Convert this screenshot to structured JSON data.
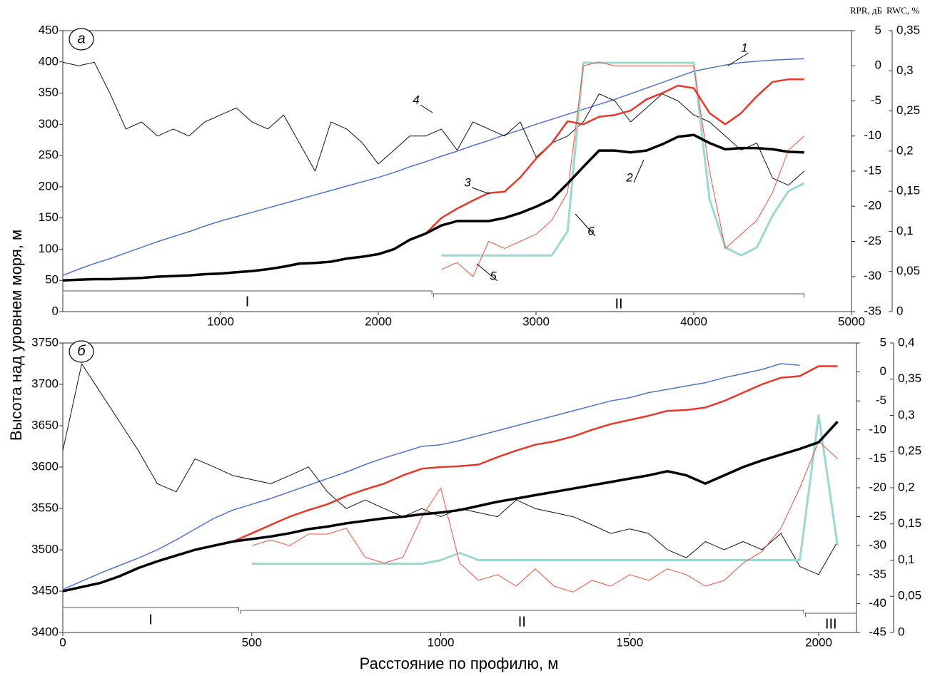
{
  "chart_data": [
    {
      "type": "line",
      "panel_label": "а",
      "y_label": "Высота над уровнем моря, м",
      "y2_label": "RPR, дБ",
      "y3_label": "RWC, %",
      "x": [
        0,
        100,
        200,
        300,
        400,
        500,
        600,
        700,
        800,
        900,
        1000,
        1100,
        1200,
        1300,
        1400,
        1500,
        1600,
        1700,
        1800,
        1900,
        2000,
        2100,
        2200,
        2300,
        2400,
        2500,
        2600,
        2700,
        2800,
        2900,
        3000,
        3100,
        3200,
        3300,
        3400,
        3500,
        3600,
        3700,
        3800,
        3900,
        4000,
        4100,
        4200,
        4300,
        4400,
        4500,
        4600,
        4700
      ],
      "xlim": [
        0,
        5000
      ],
      "xticks": [
        1000,
        2000,
        3000,
        4000,
        5000
      ],
      "ylim": [
        0,
        450
      ],
      "yticks": [
        0,
        50,
        100,
        150,
        200,
        250,
        300,
        350,
        400,
        450
      ],
      "y2lim": [
        -35,
        5
      ],
      "y2ticks": [
        -35,
        -30,
        -25,
        -20,
        -15,
        -10,
        -5,
        0,
        5
      ],
      "y3lim": [
        0,
        0.35
      ],
      "y3ticks": [
        0,
        {
          "value": 0.05,
          "label": "0,05"
        },
        {
          "value": 0.1,
          "label": "0,1"
        },
        {
          "value": 0.15,
          "label": "0,15"
        },
        {
          "value": 0.2,
          "label": "0,2"
        },
        {
          "value": 0.25,
          "label": "0,25"
        },
        {
          "value": 0.3,
          "label": "0,3"
        },
        {
          "value": 0.35,
          "label": "0,35"
        }
      ],
      "zones": [
        {
          "label": "I",
          "start": 0,
          "end": 2340
        },
        {
          "label": "II",
          "start": 2350,
          "end": 4700
        }
      ],
      "series": [
        {
          "name": "1",
          "color": "#4f73cf",
          "width": 1.5,
          "axis": "y",
          "values": [
            58,
            68,
            77,
            85,
            94,
            103,
            112,
            120,
            128,
            137,
            145,
            152,
            159,
            166,
            173,
            180,
            187,
            194,
            201,
            208,
            215,
            223,
            232,
            240,
            249,
            257,
            266,
            274,
            283,
            291,
            300,
            308,
            316,
            324,
            332,
            340,
            349,
            358,
            367,
            376,
            385,
            390,
            395,
            399,
            401,
            403,
            404,
            405
          ]
        },
        {
          "name": "4",
          "color": "#111111",
          "width": 1,
          "axis": "y2",
          "values": [
            0.5,
            0,
            0.5,
            -4,
            -9,
            -8,
            -10,
            -9,
            -10,
            -8,
            -7,
            -6,
            -8,
            -9,
            -7,
            -11,
            -15,
            -8,
            -9,
            -11,
            -14,
            -12,
            -10,
            -10,
            -9,
            -12,
            -8,
            -9,
            -10,
            -8,
            -13,
            -11,
            -10,
            -8,
            -4,
            -5,
            -8,
            -6,
            -4,
            -5,
            -7,
            -8,
            -10,
            -12,
            -11,
            -16,
            -17,
            -15
          ]
        },
        {
          "name": "6",
          "color": "#9ad8d0",
          "width": 3,
          "axis": "y3",
          "values": [
            null,
            null,
            null,
            null,
            null,
            null,
            null,
            null,
            null,
            null,
            null,
            null,
            null,
            null,
            null,
            null,
            null,
            null,
            null,
            null,
            null,
            null,
            null,
            null,
            0.07,
            0.07,
            0.07,
            0.07,
            0.07,
            0.07,
            0.07,
            0.07,
            0.1,
            0.31,
            0.31,
            0.31,
            0.31,
            0.31,
            0.31,
            0.31,
            0.31,
            0.14,
            0.08,
            0.07,
            0.08,
            0.12,
            0.15,
            0.16
          ]
        },
        {
          "name": "5",
          "color": "#f0503c",
          "width": 1,
          "axis": "y2",
          "values": [
            null,
            null,
            null,
            null,
            null,
            null,
            null,
            null,
            null,
            null,
            null,
            null,
            null,
            null,
            null,
            null,
            null,
            null,
            null,
            null,
            null,
            null,
            null,
            null,
            -29,
            -28,
            -30,
            -25,
            -26,
            -25,
            -24,
            -22,
            -18,
            0,
            0.5,
            0,
            0,
            0,
            0,
            0,
            0,
            -15,
            -26,
            -24,
            -22,
            -18,
            -12,
            -10
          ]
        },
        {
          "name": "3",
          "color": "#e8382a",
          "width": 2.5,
          "axis": "y",
          "values": [
            50,
            51,
            52,
            52,
            53,
            54,
            56,
            57,
            58,
            60,
            61,
            63,
            65,
            68,
            72,
            77,
            78,
            80,
            85,
            88,
            92,
            100,
            115,
            125,
            150,
            165,
            178,
            190,
            192,
            215,
            245,
            270,
            305,
            300,
            312,
            315,
            322,
            340,
            350,
            362,
            358,
            318,
            300,
            318,
            345,
            368,
            372,
            372
          ]
        },
        {
          "name": "2",
          "color": "#000000",
          "width": 3.5,
          "axis": "y",
          "values": [
            50,
            51,
            52,
            52,
            53,
            54,
            56,
            57,
            58,
            60,
            61,
            63,
            65,
            68,
            72,
            77,
            78,
            80,
            85,
            88,
            92,
            100,
            115,
            125,
            138,
            145,
            145,
            145,
            150,
            158,
            168,
            180,
            205,
            232,
            258,
            258,
            255,
            258,
            268,
            280,
            283,
            270,
            260,
            262,
            262,
            260,
            256,
            255
          ]
        }
      ]
    },
    {
      "type": "line",
      "panel_label": "б",
      "x_label": "Расстояние по профилю, м",
      "x": [
        0,
        50,
        100,
        150,
        200,
        250,
        300,
        350,
        400,
        450,
        500,
        550,
        600,
        650,
        700,
        750,
        800,
        850,
        900,
        950,
        1000,
        1050,
        1100,
        1150,
        1200,
        1250,
        1300,
        1350,
        1400,
        1450,
        1500,
        1550,
        1600,
        1650,
        1700,
        1750,
        1800,
        1850,
        1900,
        1950,
        2000,
        2050
      ],
      "xlim": [
        0,
        2100
      ],
      "xticks": [
        0,
        500,
        1000,
        1500,
        2000
      ],
      "ylim": [
        3400,
        3750
      ],
      "yticks": [
        3400,
        3450,
        3500,
        3550,
        3600,
        3650,
        3700,
        3750
      ],
      "y2lim": [
        -45,
        5
      ],
      "y2ticks": [
        -45,
        -40,
        -35,
        -30,
        -25,
        -20,
        -15,
        -10,
        -5,
        0,
        5
      ],
      "y3lim": [
        0,
        0.4
      ],
      "y3ticks": [
        0,
        {
          "value": 0.05,
          "label": "0,05"
        },
        {
          "value": 0.1,
          "label": "0,1"
        },
        {
          "value": 0.15,
          "label": "0,15"
        },
        {
          "value": 0.2,
          "label": "0,2"
        },
        {
          "value": 0.25,
          "label": "0,25"
        },
        {
          "value": 0.3,
          "label": "0,3"
        },
        {
          "value": 0.35,
          "label": "0,35"
        },
        {
          "value": 0.4,
          "label": "0,4"
        }
      ],
      "zones": [
        {
          "label": "I",
          "start": 0,
          "end": 465
        },
        {
          "label": "II",
          "start": 470,
          "end": 1960
        },
        {
          "label": "III",
          "start": 1965,
          "end": 2100
        }
      ],
      "series": [
        {
          "color": "#4f73cf",
          "width": 1.5,
          "axis": "y",
          "values": [
            3452,
            3462,
            3472,
            3481,
            3490,
            3500,
            3512,
            3525,
            3538,
            3548,
            3555,
            3562,
            3570,
            3578,
            3586,
            3594,
            3603,
            3611,
            3618,
            3625,
            3627,
            3632,
            3638,
            3644,
            3650,
            3656,
            3662,
            3668,
            3674,
            3680,
            3684,
            3690,
            3694,
            3698,
            3702,
            3708,
            3713,
            3718,
            3725,
            3723,
            null,
            null
          ]
        },
        {
          "color": "#111111",
          "width": 1,
          "axis": "y2",
          "values": [
            -13.6,
            1.4,
            -3.6,
            -8.6,
            -13.6,
            -19.3,
            -20.7,
            -15,
            -16.4,
            -17.9,
            -18.6,
            -19.3,
            -17.9,
            -16.4,
            -20.7,
            -23.6,
            -22.1,
            -23.6,
            -25,
            -23.6,
            -25,
            -23.6,
            -24.3,
            -25,
            -22.1,
            -23.6,
            -24.3,
            -25,
            -26.4,
            -27.9,
            -27.1,
            -27.9,
            -30.7,
            -32.1,
            -29.3,
            -30.7,
            -29.3,
            -30.7,
            -27.9,
            -33.6,
            -35,
            -29.3
          ]
        },
        {
          "color": "#9ad8d0",
          "width": 3,
          "axis": "y3",
          "values": [
            null,
            null,
            null,
            null,
            null,
            null,
            null,
            null,
            null,
            null,
            0.095,
            0.095,
            0.095,
            0.095,
            0.095,
            0.095,
            0.095,
            0.095,
            0.095,
            0.095,
            0.1,
            0.11,
            0.1,
            0.1,
            0.1,
            0.1,
            0.1,
            0.1,
            0.1,
            0.1,
            0.1,
            0.1,
            0.1,
            0.1,
            0.1,
            0.1,
            0.1,
            0.1,
            0.1,
            0.1,
            0.3,
            0.12
          ]
        },
        {
          "color": "#f0503c",
          "width": 1,
          "axis": "y2",
          "values": [
            null,
            null,
            null,
            null,
            null,
            null,
            null,
            null,
            null,
            null,
            -30,
            -29,
            -30,
            -28,
            -28,
            -27,
            -32,
            -33,
            -32,
            -25,
            -20,
            -33,
            -36,
            -35,
            -37,
            -34,
            -37,
            -38,
            -36,
            -37,
            -35,
            -36,
            -34,
            -35,
            -37,
            -36,
            -33,
            -31,
            -27,
            -20,
            -12,
            -15
          ]
        },
        {
          "color": "#e8382a",
          "width": 2.5,
          "axis": "y",
          "values": [
            3450,
            3455,
            3460,
            3468,
            3478,
            3486,
            3493,
            3500,
            3505,
            3510,
            3520,
            3530,
            3540,
            3548,
            3555,
            3565,
            3573,
            3580,
            3590,
            3598,
            3600,
            3601,
            3603,
            3612,
            3620,
            3627,
            3631,
            3637,
            3645,
            3652,
            3657,
            3662,
            3668,
            3669,
            3672,
            3680,
            3690,
            3700,
            3708,
            3710,
            3722,
            3722
          ]
        },
        {
          "color": "#000000",
          "width": 3.5,
          "axis": "y",
          "values": [
            3450,
            3455,
            3460,
            3468,
            3478,
            3486,
            3493,
            3500,
            3505,
            3510,
            3513,
            3516,
            3520,
            3525,
            3528,
            3532,
            3535,
            3538,
            3540,
            3543,
            3545,
            3548,
            3553,
            3558,
            3562,
            3566,
            3570,
            3574,
            3578,
            3582,
            3586,
            3590,
            3595,
            3590,
            3580,
            3590,
            3600,
            3608,
            3615,
            3622,
            3630,
            3655
          ]
        }
      ]
    }
  ]
}
